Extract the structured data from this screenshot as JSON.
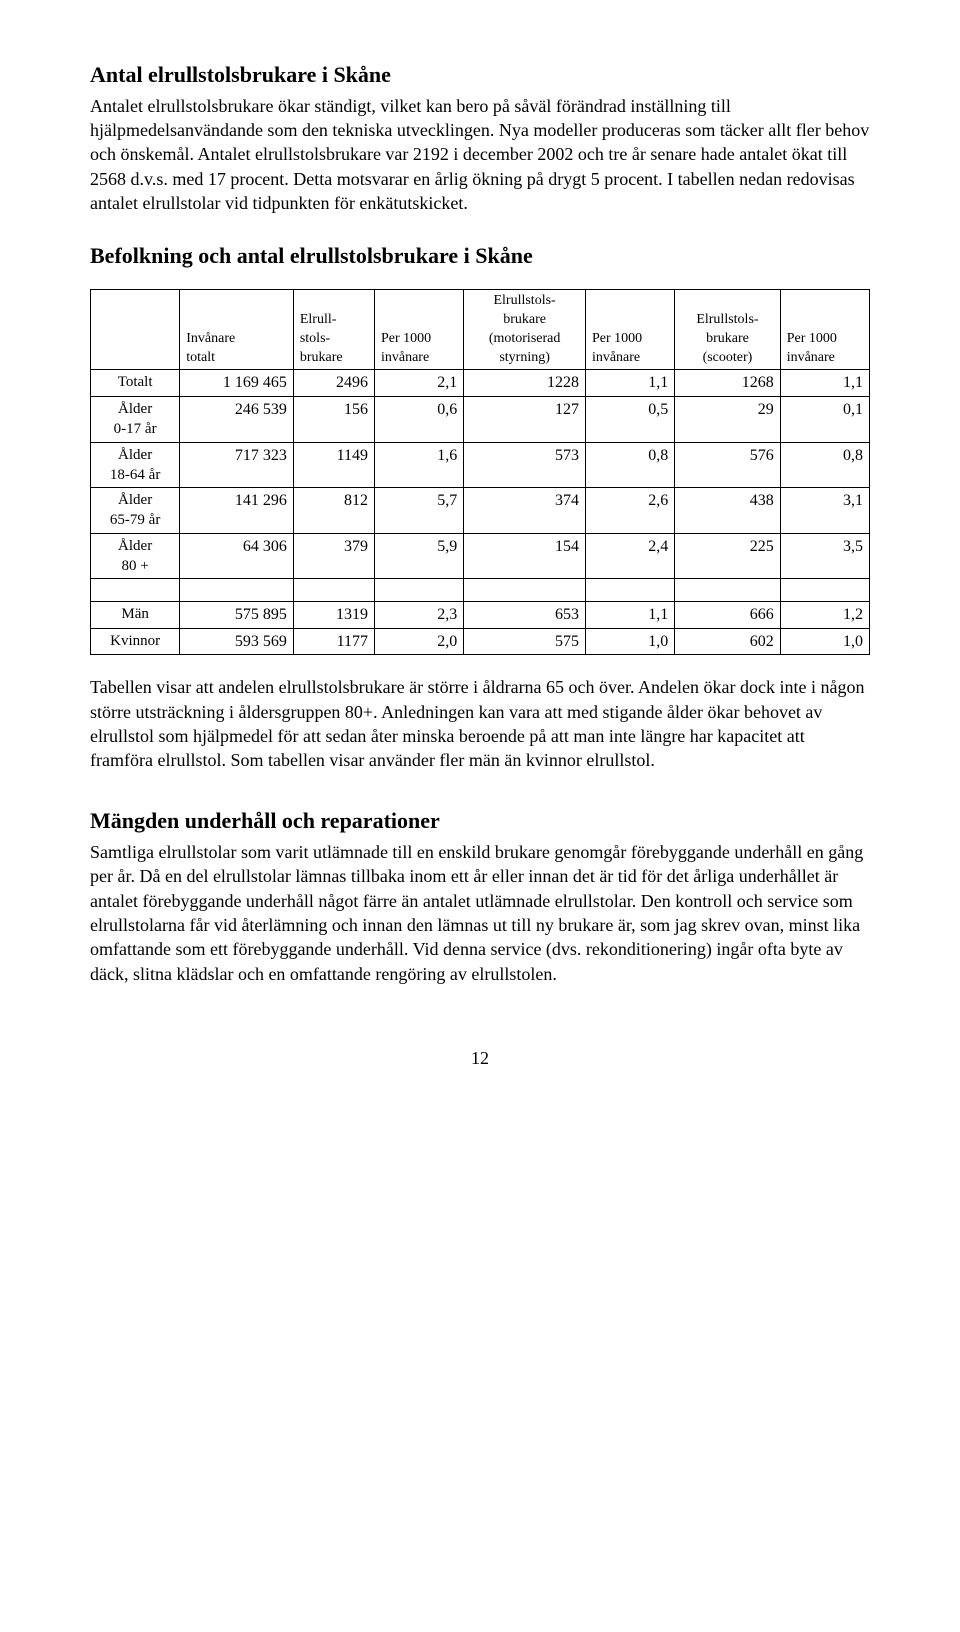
{
  "section1": {
    "title": "Antal elrullstolsbrukare i Skåne",
    "para": "Antalet elrullstolsbrukare ökar ständigt, vilket kan bero på såväl förändrad inställning till hjälpmedelsanvändande som den tekniska utvecklingen. Nya modeller produceras som täcker allt fler behov och önskemål. Antalet elrullstolsbrukare var 2192 i december 2002 och tre år senare hade antalet ökat till 2568 d.v.s. med 17 procent. Detta motsvarar en årlig ökning på drygt 5 procent. I tabellen nedan redovisas antalet elrullstolar vid tidpunkten för enkätutskicket."
  },
  "tableSection": {
    "title": "Befolkning och antal elrullstolsbrukare i Skåne",
    "columns": [
      "",
      "Invånare\ntotalt",
      "Elrull-\nstols-\nbrukare",
      "Per 1000\ninvånare",
      "Elrullstols-\nbrukare\n(motoriserad\nstyrning)",
      "Per 1000\ninvånare",
      "Elrullstols-\nbrukare\n(scooter)",
      "Per 1000\ninvånare"
    ],
    "rows": [
      {
        "label": "Totalt",
        "vals": [
          "1 169 465",
          "2496",
          "2,1",
          "1228",
          "1,1",
          "1268",
          "1,1"
        ]
      },
      {
        "label": "Ålder\n0-17 år",
        "vals": [
          "246 539",
          "156",
          "0,6",
          "127",
          "0,5",
          "29",
          "0,1"
        ]
      },
      {
        "label": "Ålder\n18-64 år",
        "vals": [
          "717 323",
          "1149",
          "1,6",
          "573",
          "0,8",
          "576",
          "0,8"
        ]
      },
      {
        "label": "Ålder\n65-79 år",
        "vals": [
          "141 296",
          "812",
          "5,7",
          "374",
          "2,6",
          "438",
          "3,1"
        ]
      },
      {
        "label": "Ålder\n80 +",
        "vals": [
          "64 306",
          "379",
          "5,9",
          "154",
          "2,4",
          "225",
          "3,5"
        ]
      },
      {
        "blank": true
      },
      {
        "label": "Män",
        "vals": [
          "575 895",
          "1319",
          "2,3",
          "653",
          "1,1",
          "666",
          "1,2"
        ]
      },
      {
        "label": "Kvinnor",
        "vals": [
          "593 569",
          "1177",
          "2,0",
          "575",
          "1,0",
          "602",
          "1,0"
        ]
      }
    ],
    "afterPara": "Tabellen visar att andelen elrullstolsbrukare är större i åldrarna 65 och över. Andelen ökar dock inte i någon större utsträckning i åldersgruppen 80+. Anledningen kan vara att med stigande ålder ökar behovet av elrullstol som hjälpmedel för att sedan åter minska beroende på att man inte längre har kapacitet att framföra elrullstol. Som tabellen visar använder fler män än kvinnor elrullstol."
  },
  "section2": {
    "title": "Mängden underhåll och reparationer",
    "para": "Samtliga elrullstolar som varit utlämnade till en enskild brukare genomgår förebyggande underhåll en gång per år. Då en del elrullstolar lämnas tillbaka inom ett år eller innan det är tid för det årliga underhållet är antalet förebyggande underhåll något färre än antalet utlämnade elrullstolar. Den kontroll och service som elrullstolarna får vid återlämning och innan den lämnas ut till ny brukare är, som jag skrev ovan, minst lika omfattande som ett förebyggande underhåll. Vid denna service (dvs. rekonditionering) ingår ofta byte av däck, slitna klädslar och en omfattande rengöring av elrullstolen."
  },
  "pageNumber": "12"
}
